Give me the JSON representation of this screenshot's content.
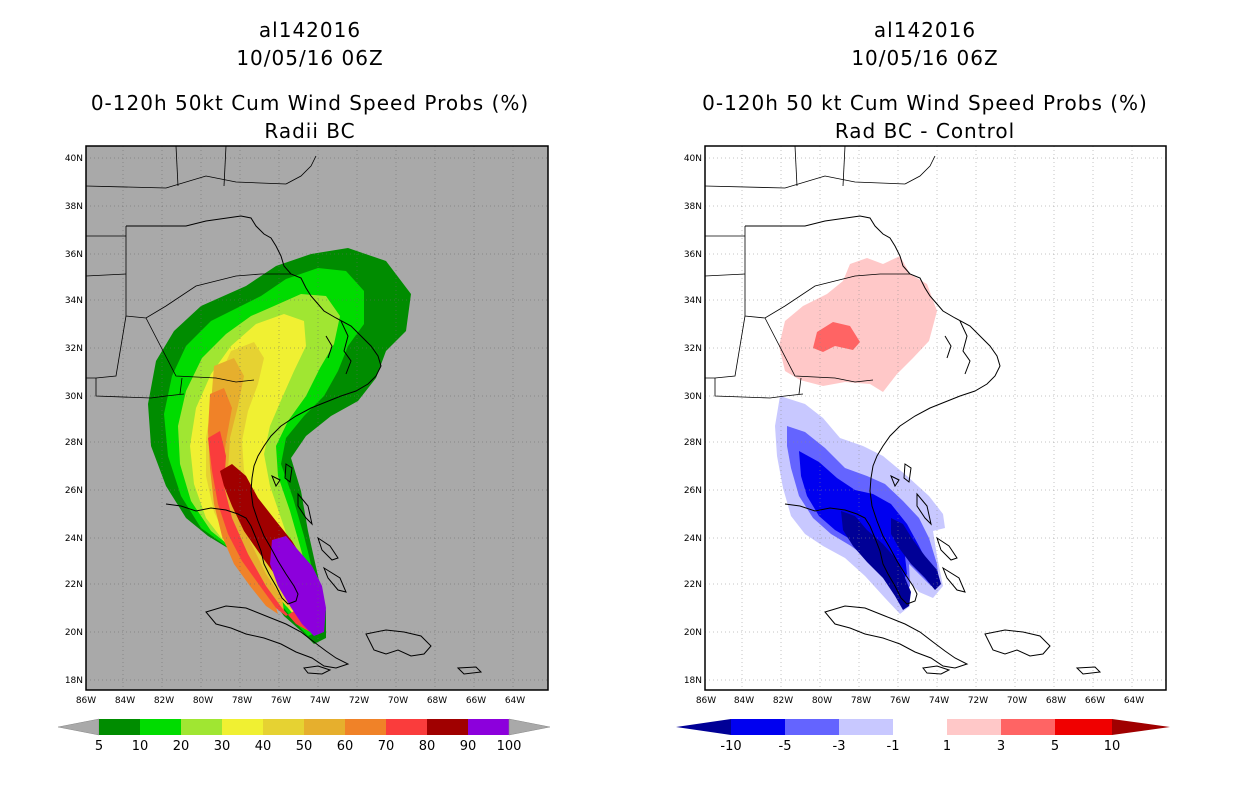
{
  "left_panel": {
    "storm_id": "al142016",
    "datetime": "10/05/16 06Z",
    "title": "0-120h 50kt Cum Wind Speed Probs (%)",
    "subtitle": "Radii BC",
    "background_color": "#a9a9a9",
    "colorbar": {
      "labels": [
        "5",
        "10",
        "20",
        "30",
        "40",
        "50",
        "60",
        "70",
        "80",
        "90",
        "100"
      ],
      "colors": [
        "#008c00",
        "#00dc00",
        "#a0e632",
        "#f0f032",
        "#e6d232",
        "#e6af2d",
        "#f08228",
        "#fa3c3c",
        "#a00000",
        "#8c00dc"
      ]
    }
  },
  "right_panel": {
    "storm_id": "al142016",
    "datetime": "10/05/16 06Z",
    "title": "0-120h 50 kt Cum Wind Speed Probs (%)",
    "subtitle": "Rad BC - Control",
    "background_color": "#ffffff",
    "colorbar": {
      "labels": [
        "-10",
        "-5",
        "-3",
        "-1",
        "1",
        "3",
        "5",
        "10"
      ],
      "colors": [
        "#000096",
        "#0000f0",
        "#6464ff",
        "#c8c8ff",
        "#ffffff",
        "#ffc8c8",
        "#ff6464",
        "#f00000",
        "#a00000"
      ]
    }
  },
  "axes": {
    "lat_labels": [
      "40N",
      "38N",
      "36N",
      "34N",
      "32N",
      "30N",
      "28N",
      "26N",
      "24N",
      "22N",
      "20N",
      "18N"
    ],
    "lon_labels": [
      "86W",
      "84W",
      "82W",
      "80W",
      "78W",
      "76W",
      "74W",
      "72W",
      "70W",
      "68W",
      "66W",
      "64W"
    ]
  }
}
